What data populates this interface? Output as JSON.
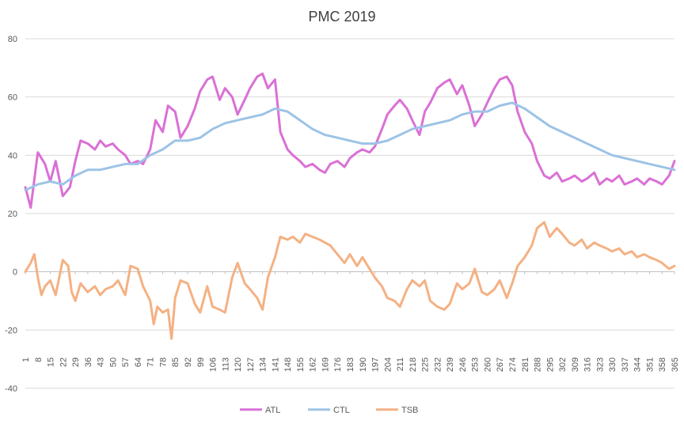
{
  "chart_data": {
    "type": "line",
    "title": "PMC 2019",
    "xlabel": "",
    "ylabel": "",
    "ylim": [
      -40,
      80
    ],
    "yticks": [
      80,
      60,
      40,
      20,
      0,
      -20,
      -40
    ],
    "x_tick_labels": [
      "1",
      "8",
      "15",
      "22",
      "29",
      "36",
      "43",
      "50",
      "57",
      "64",
      "71",
      "78",
      "85",
      "92",
      "99",
      "106",
      "113",
      "120",
      "127",
      "134",
      "141",
      "148",
      "155",
      "162",
      "169",
      "176",
      "183",
      "190",
      "197",
      "204",
      "211",
      "218",
      "225",
      "232",
      "239",
      "246",
      "253",
      "260",
      "267",
      "274",
      "281",
      "288",
      "295",
      "302",
      "309",
      "316",
      "323",
      "330",
      "337",
      "344",
      "351",
      "358",
      "365"
    ],
    "x_range": [
      1,
      365
    ],
    "grid": "horizontal",
    "legend_position": "bottom",
    "series": [
      {
        "name": "ATL",
        "color": "#da70d6",
        "x": [
          1,
          4,
          8,
          12,
          15,
          18,
          22,
          26,
          29,
          32,
          36,
          40,
          43,
          46,
          50,
          53,
          57,
          60,
          64,
          67,
          71,
          74,
          78,
          81,
          85,
          88,
          92,
          96,
          99,
          103,
          106,
          110,
          113,
          117,
          120,
          124,
          127,
          131,
          134,
          137,
          141,
          144,
          148,
          151,
          155,
          158,
          162,
          166,
          169,
          172,
          176,
          180,
          183,
          187,
          190,
          194,
          197,
          201,
          204,
          208,
          211,
          215,
          218,
          222,
          225,
          228,
          232,
          236,
          239,
          243,
          246,
          250,
          253,
          257,
          260,
          264,
          267,
          271,
          274,
          277,
          281,
          285,
          288,
          292,
          295,
          299,
          302,
          306,
          309,
          313,
          316,
          320,
          323,
          327,
          330,
          334,
          337,
          341,
          344,
          348,
          351,
          355,
          358,
          362,
          365
        ],
        "values": [
          29,
          22,
          41,
          37,
          31,
          38,
          26,
          29,
          38,
          45,
          44,
          42,
          45,
          43,
          44,
          42,
          40,
          37,
          38,
          37,
          42,
          52,
          48,
          57,
          55,
          46,
          50,
          56,
          62,
          66,
          67,
          59,
          63,
          60,
          54,
          59,
          63,
          67,
          68,
          63,
          66,
          48,
          42,
          40,
          38,
          36,
          37,
          35,
          34,
          37,
          38,
          36,
          39,
          41,
          42,
          41,
          43,
          49,
          54,
          57,
          59,
          56,
          52,
          47,
          55,
          58,
          63,
          65,
          66,
          61,
          64,
          57,
          50,
          54,
          58,
          63,
          66,
          67,
          64,
          55,
          48,
          44,
          38,
          33,
          32,
          34,
          31,
          32,
          33,
          31,
          32,
          34,
          30,
          32,
          31,
          33,
          30,
          31,
          32,
          30,
          32,
          31,
          30,
          33,
          38
        ]
      },
      {
        "name": "CTL",
        "color": "#9dc3e6",
        "x": [
          1,
          8,
          15,
          22,
          29,
          36,
          43,
          50,
          57,
          64,
          71,
          78,
          85,
          92,
          99,
          106,
          113,
          120,
          127,
          134,
          141,
          148,
          155,
          162,
          169,
          176,
          183,
          190,
          197,
          204,
          211,
          218,
          225,
          232,
          239,
          246,
          253,
          260,
          267,
          274,
          281,
          288,
          295,
          302,
          309,
          316,
          323,
          330,
          337,
          344,
          351,
          358,
          365
        ],
        "values": [
          28,
          30,
          31,
          30,
          33,
          35,
          35,
          36,
          37,
          37,
          40,
          42,
          45,
          45,
          46,
          49,
          51,
          52,
          53,
          54,
          56,
          55,
          52,
          49,
          47,
          46,
          45,
          44,
          44,
          45,
          47,
          49,
          50,
          51,
          52,
          54,
          55,
          55,
          57,
          58,
          56,
          53,
          50,
          48,
          46,
          44,
          42,
          40,
          39,
          38,
          37,
          36,
          35
        ]
      },
      {
        "name": "TSB",
        "color": "#f4b183",
        "x": [
          1,
          4,
          6,
          8,
          10,
          12,
          15,
          18,
          22,
          25,
          27,
          29,
          32,
          36,
          40,
          43,
          46,
          50,
          53,
          57,
          60,
          64,
          67,
          71,
          73,
          75,
          78,
          81,
          83,
          85,
          88,
          92,
          96,
          99,
          103,
          106,
          110,
          113,
          117,
          120,
          124,
          127,
          131,
          134,
          137,
          141,
          144,
          148,
          151,
          155,
          158,
          162,
          166,
          169,
          172,
          176,
          180,
          183,
          187,
          190,
          194,
          197,
          201,
          204,
          208,
          211,
          215,
          218,
          222,
          225,
          228,
          232,
          236,
          239,
          243,
          246,
          250,
          253,
          257,
          260,
          264,
          267,
          271,
          274,
          277,
          281,
          285,
          288,
          292,
          295,
          299,
          302,
          306,
          309,
          313,
          316,
          320,
          323,
          327,
          330,
          334,
          337,
          341,
          344,
          348,
          351,
          355,
          358,
          362,
          365
        ],
        "values": [
          0,
          3,
          6,
          -2,
          -8,
          -5,
          -3,
          -8,
          4,
          2,
          -7,
          -10,
          -4,
          -7,
          -5,
          -8,
          -6,
          -5,
          -3,
          -8,
          2,
          1,
          -5,
          -10,
          -18,
          -12,
          -14,
          -13,
          -23,
          -9,
          -3,
          -4,
          -11,
          -14,
          -5,
          -12,
          -13,
          -14,
          -2,
          3,
          -4,
          -6,
          -9,
          -13,
          -2,
          5,
          12,
          11,
          12,
          10,
          13,
          12,
          11,
          10,
          9,
          6,
          3,
          6,
          2,
          5,
          1,
          -2,
          -5,
          -9,
          -10,
          -12,
          -6,
          -3,
          -5,
          -3,
          -10,
          -12,
          -13,
          -11,
          -4,
          -6,
          -4,
          1,
          -7,
          -8,
          -6,
          -3,
          -9,
          -4,
          2,
          5,
          9,
          15,
          17,
          12,
          15,
          13,
          10,
          9,
          11,
          8,
          10,
          9,
          8,
          7,
          8,
          6,
          7,
          5,
          6,
          5,
          4,
          3,
          1,
          2
        ]
      }
    ]
  }
}
